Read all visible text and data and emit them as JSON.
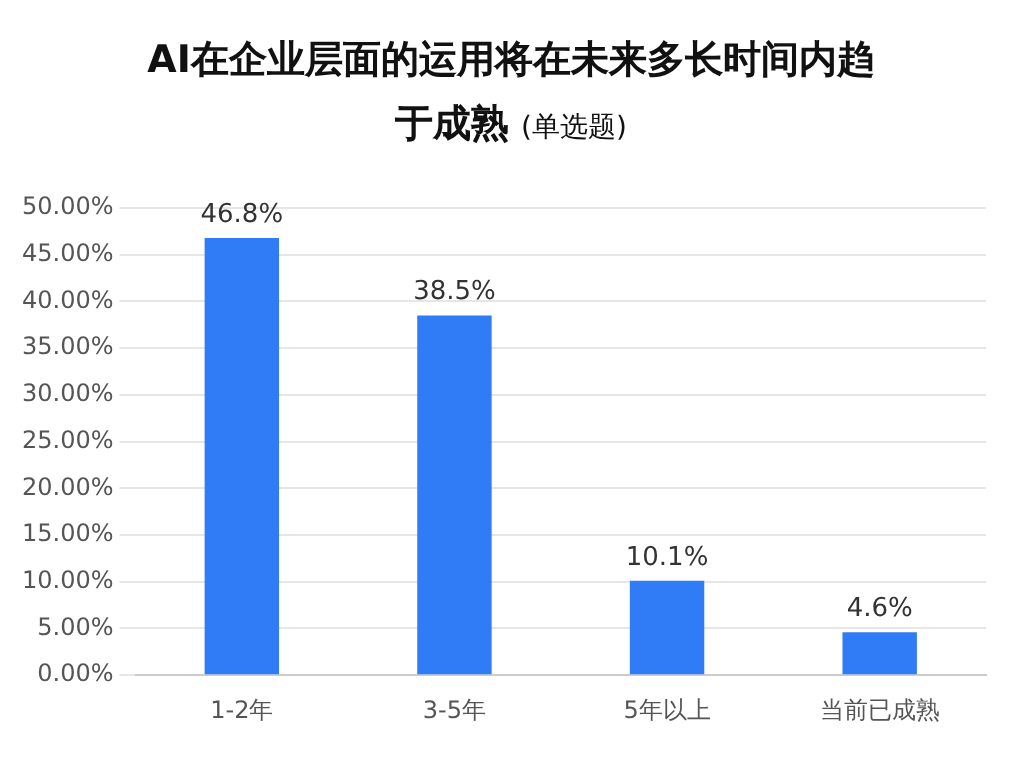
{
  "chart_data": {
    "type": "bar",
    "title": "AI在企业层面的运用将在未来多长时间内趋于成熟",
    "subtitle": "(单选题)",
    "categories": [
      "1-2年",
      "3-5年",
      "5年以上",
      "当前已成熟"
    ],
    "values": [
      46.8,
      38.5,
      10.1,
      4.6
    ],
    "value_labels": [
      "46.8%",
      "38.5%",
      "10.1%",
      "4.6%"
    ],
    "color": "#2f7cf6",
    "ylim": [
      0,
      50
    ],
    "yticks": [
      {
        "value": 0,
        "label": "0.00%"
      },
      {
        "value": 5,
        "label": "5.00%"
      },
      {
        "value": 10,
        "label": "10.00%"
      },
      {
        "value": 15,
        "label": "15.00%"
      },
      {
        "value": 20,
        "label": "20.00%"
      },
      {
        "value": 25,
        "label": "25.00%"
      },
      {
        "value": 30,
        "label": "30.00%"
      },
      {
        "value": 35,
        "label": "35.00%"
      },
      {
        "value": 40,
        "label": "40.00%"
      },
      {
        "value": 45,
        "label": "45.00%"
      },
      {
        "value": 50,
        "label": "50.00%"
      }
    ],
    "grid": "y"
  }
}
